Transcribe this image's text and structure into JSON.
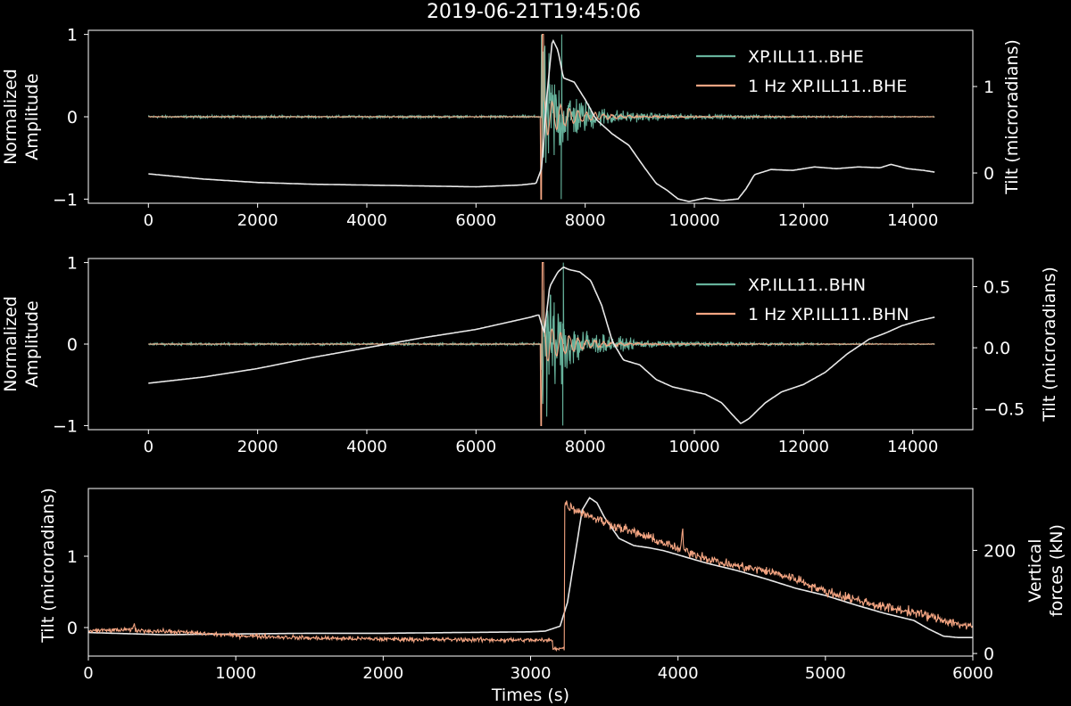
{
  "figure": {
    "title": "2019-06-21T19:45:06",
    "colors": {
      "background": "#000000",
      "foreground": "#ffffff",
      "raw": "#66b29b",
      "filtered": "#f4a582",
      "tilt": "#e8e8e8",
      "force": "#f4a582"
    }
  },
  "chart_data": [
    {
      "type": "line",
      "panel": "top",
      "title": "2019-06-21T19:45:06",
      "xlabel": "",
      "ylabel": "Normalized Amplitude",
      "y2label": "Tilt (microradians)",
      "xlim": [
        -1100,
        15100
      ],
      "ylim": [
        -1.05,
        1.05
      ],
      "y2lim": [
        -0.35,
        1.65
      ],
      "xticks": [
        0,
        2000,
        4000,
        6000,
        8000,
        10000,
        12000,
        14000
      ],
      "xtick_labels": [
        "0",
        "2000",
        "4000",
        "6000",
        "8000",
        "10000",
        "12000",
        "14000"
      ],
      "yticks": [
        -1,
        0,
        1
      ],
      "ytick_labels": [
        "−1",
        "0",
        "1"
      ],
      "y2ticks": [
        0,
        1
      ],
      "y2tick_labels": [
        "0",
        "1"
      ],
      "legend": "upper right",
      "series": [
        {
          "name": "XP.ILL11..BHE",
          "color": "#66b29b",
          "kind": "seismic",
          "peak_time": 7200,
          "amplitude": 1.0,
          "spike_time": 7560
        },
        {
          "name": "1 Hz XP.ILL11..BHE",
          "color": "#f4a582",
          "kind": "filtered",
          "peak_time": 7200,
          "amplitude": 0.45
        },
        {
          "name": "",
          "axis": "right",
          "color": "#e8e8e8",
          "kind": "tilt",
          "x": [
            0,
            1000,
            2000,
            3000,
            4000,
            5000,
            6000,
            6800,
            7100,
            7200,
            7300,
            7400,
            7500,
            7600,
            7800,
            8000,
            8200,
            8500,
            8800,
            9100,
            9300,
            9500,
            9700,
            9900,
            10200,
            10500,
            10800,
            10950,
            11100,
            11400,
            11800,
            12200,
            12600,
            13000,
            13400,
            13600,
            13900,
            14200,
            14400
          ],
          "y": [
            -0.01,
            -0.07,
            -0.11,
            -0.13,
            -0.14,
            -0.15,
            -0.16,
            -0.14,
            -0.12,
            0.05,
            0.9,
            1.55,
            1.42,
            1.1,
            1.05,
            0.85,
            0.62,
            0.45,
            0.32,
            0.05,
            -0.12,
            -0.2,
            -0.3,
            -0.33,
            -0.29,
            -0.32,
            -0.3,
            -0.18,
            -0.02,
            0.04,
            0.03,
            0.07,
            0.05,
            0.07,
            0.06,
            0.1,
            0.05,
            0.03,
            0.01
          ]
        }
      ]
    },
    {
      "type": "line",
      "panel": "middle",
      "xlabel": "",
      "ylabel": "Normalized Amplitude",
      "y2label": "Tilt (microradians)",
      "xlim": [
        -1100,
        15100
      ],
      "ylim": [
        -1.05,
        1.05
      ],
      "y2lim": [
        -0.67,
        0.73
      ],
      "xticks": [
        0,
        2000,
        4000,
        6000,
        8000,
        10000,
        12000,
        14000
      ],
      "xtick_labels": [
        "0",
        "2000",
        "4000",
        "6000",
        "8000",
        "10000",
        "12000",
        "14000"
      ],
      "yticks": [
        -1,
        0,
        1
      ],
      "ytick_labels": [
        "−1",
        "0",
        "1"
      ],
      "y2ticks": [
        -0.5,
        0.0,
        0.5
      ],
      "y2tick_labels": [
        "−0.5",
        "0.0",
        "0.5"
      ],
      "legend": "upper right",
      "series": [
        {
          "name": "XP.ILL11..BHN",
          "color": "#66b29b",
          "kind": "seismic",
          "peak_time": 7200,
          "amplitude": 1.0,
          "spike_time": 7590
        },
        {
          "name": "1 Hz XP.ILL11..BHN",
          "color": "#f4a582",
          "kind": "filtered",
          "peak_time": 7200,
          "amplitude": 0.45
        },
        {
          "name": "",
          "axis": "right",
          "color": "#e8e8e8",
          "kind": "tilt",
          "x": [
            0,
            1000,
            2000,
            3000,
            4000,
            5000,
            6000,
            6500,
            7000,
            7150,
            7250,
            7350,
            7500,
            7600,
            7700,
            7900,
            8100,
            8300,
            8500,
            8700,
            9000,
            9300,
            9600,
            9900,
            10200,
            10500,
            10700,
            10850,
            11000,
            11300,
            11600,
            12000,
            12400,
            12800,
            13200,
            13500,
            13800,
            14100,
            14400
          ],
          "y": [
            -0.29,
            -0.24,
            -0.17,
            -0.08,
            0.0,
            0.08,
            0.15,
            0.2,
            0.25,
            0.27,
            0.12,
            0.5,
            0.62,
            0.66,
            0.64,
            0.62,
            0.55,
            0.35,
            0.05,
            -0.1,
            -0.14,
            -0.26,
            -0.32,
            -0.35,
            -0.38,
            -0.45,
            -0.55,
            -0.62,
            -0.58,
            -0.45,
            -0.36,
            -0.3,
            -0.2,
            -0.05,
            0.07,
            0.12,
            0.18,
            0.22,
            0.25
          ]
        }
      ]
    },
    {
      "type": "line",
      "panel": "bottom",
      "xlabel": "Times (s)",
      "ylabel": "Tilt (microradians)",
      "y2label": "Vertical forces (kN)",
      "y2label_color": "#f4a582",
      "xlim": [
        0,
        6000
      ],
      "ylim": [
        -0.4,
        1.95
      ],
      "y2lim": [
        -5,
        320
      ],
      "xticks": [
        0,
        1000,
        2000,
        3000,
        4000,
        5000,
        6000
      ],
      "xtick_labels": [
        "0",
        "1000",
        "2000",
        "3000",
        "4000",
        "5000",
        "6000"
      ],
      "yticks": [
        0,
        1
      ],
      "ytick_labels": [
        "0",
        "1"
      ],
      "y2ticks": [
        0,
        200
      ],
      "y2tick_labels": [
        "0",
        "200"
      ],
      "series": [
        {
          "name": "",
          "axis": "left",
          "color": "#e8e8e8",
          "kind": "tilt",
          "x": [
            0,
            500,
            1000,
            1500,
            2000,
            2500,
            3000,
            3100,
            3200,
            3250,
            3300,
            3350,
            3400,
            3450,
            3500,
            3600,
            3700,
            3800,
            3900,
            4000,
            4200,
            4400,
            4600,
            4800,
            5000,
            5200,
            5400,
            5600,
            5700,
            5800,
            5900,
            6000
          ],
          "y": [
            -0.07,
            -0.1,
            -0.09,
            -0.08,
            -0.08,
            -0.07,
            -0.06,
            -0.05,
            0.02,
            0.35,
            1.0,
            1.65,
            1.82,
            1.75,
            1.55,
            1.25,
            1.15,
            1.12,
            1.08,
            1.02,
            0.9,
            0.8,
            0.68,
            0.55,
            0.45,
            0.32,
            0.2,
            0.1,
            -0.02,
            -0.12,
            -0.14,
            -0.14
          ]
        },
        {
          "name": "",
          "axis": "right",
          "color": "#f4a582",
          "kind": "force",
          "noise": 6,
          "x": [
            0,
            300,
            310,
            320,
            600,
            1000,
            1500,
            2000,
            2500,
            3000,
            3150,
            3151,
            3230,
            3231,
            3300,
            3500,
            3700,
            3900,
            4020,
            4030,
            4040,
            4300,
            4600,
            4800,
            5000,
            5200,
            5400,
            5600,
            5800,
            6000
          ],
          "y": [
            44,
            46,
            58,
            45,
            42,
            35,
            30,
            28,
            27,
            26,
            25,
            10,
            10,
            290,
            280,
            255,
            235,
            215,
            200,
            245,
            200,
            175,
            160,
            145,
            120,
            105,
            90,
            80,
            65,
            50
          ]
        }
      ]
    }
  ]
}
